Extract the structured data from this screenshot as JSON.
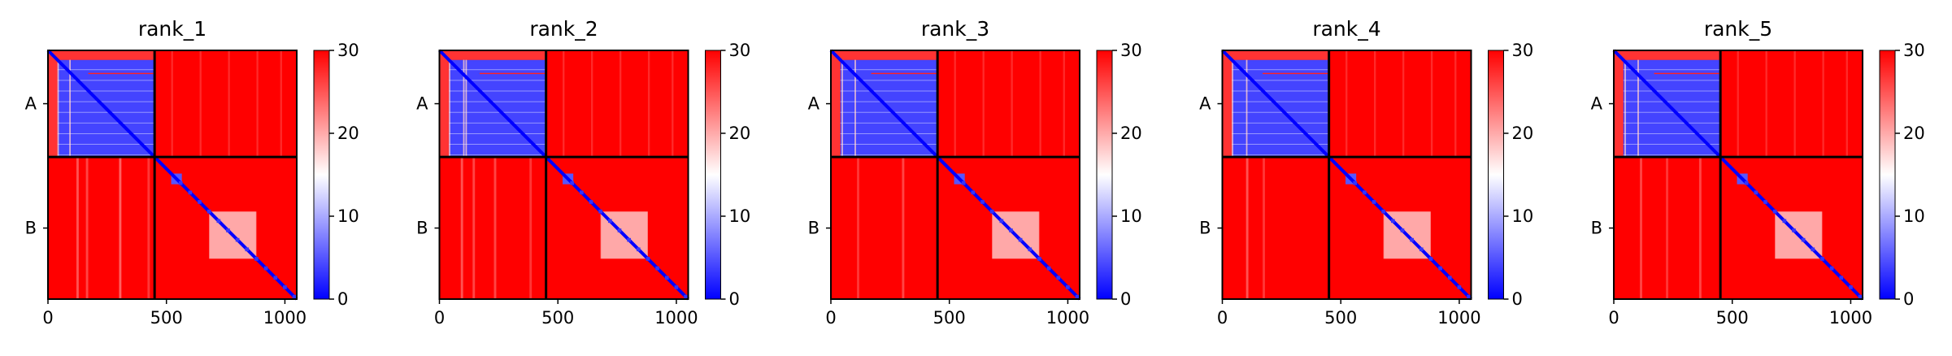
{
  "chart_data": {
    "type": "heatmap",
    "colormap": [
      "#0000ff",
      "#ffffff",
      "#ff0000"
    ],
    "colorbar": {
      "vmin": 0,
      "vmax": 30,
      "ticks": [
        "0",
        "10",
        "20",
        "30"
      ],
      "tick_values": [
        0,
        10,
        20,
        30
      ]
    },
    "residues": {
      "total": 1050,
      "chain_boundary": 450,
      "chains": [
        "A",
        "B"
      ]
    },
    "x_ticks": [
      "0",
      "500",
      "1000"
    ],
    "x_tick_values": [
      0,
      500,
      1000
    ],
    "panels": [
      {
        "title": "rank_1",
        "chain_a_block_high_cols": [
          40,
          90
        ],
        "chain_b_stripes": [
          [
            120,
            0.6
          ],
          [
            160,
            0.5
          ],
          [
            300,
            0.7
          ],
          [
            420,
            0.4
          ]
        ]
      },
      {
        "title": "rank_2",
        "chain_a_block_high_cols": [
          40,
          100,
          110
        ],
        "chain_b_stripes": [
          [
            90,
            0.6
          ],
          [
            140,
            0.5
          ],
          [
            230,
            0.5
          ],
          [
            380,
            0.4
          ]
        ]
      },
      {
        "title": "rank_3",
        "chain_a_block_high_cols": [
          45,
          100
        ],
        "chain_b_stripes": [
          [
            110,
            0.4
          ],
          [
            300,
            0.5
          ]
        ]
      },
      {
        "title": "rank_4",
        "chain_a_block_high_cols": [
          40,
          100
        ],
        "chain_b_stripes": [
          [
            100,
            0.6
          ],
          [
            170,
            0.4
          ]
        ]
      },
      {
        "title": "rank_5",
        "chain_a_block_high_cols": [
          45,
          100
        ],
        "chain_b_stripes": [
          [
            110,
            0.5
          ],
          [
            220,
            0.4
          ],
          [
            360,
            0.5
          ]
        ]
      }
    ]
  }
}
